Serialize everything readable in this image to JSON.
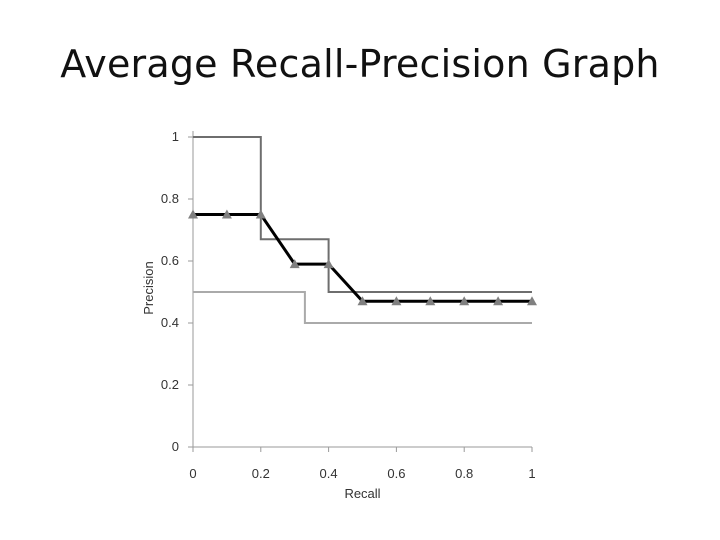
{
  "slide": {
    "title": "Average Recall-Precision Graph"
  },
  "chart_data": {
    "type": "line",
    "title": "",
    "xlabel": "Recall",
    "ylabel": "Precision",
    "xlim": [
      0,
      1
    ],
    "ylim": [
      0,
      1
    ],
    "xticks": [
      0,
      0.2,
      0.4,
      0.6,
      0.8,
      1
    ],
    "xtick_labels": [
      "0",
      "0.2",
      "0.4",
      "0.6",
      "0.8",
      "1"
    ],
    "yticks": [
      0,
      0.2,
      0.4,
      0.6,
      0.8,
      1
    ],
    "ytick_labels": [
      "0",
      "0.2",
      "0.4",
      "0.6",
      "0.8",
      "1"
    ],
    "grid": false,
    "legend": "none",
    "series": [
      {
        "style": "step-dark-gray",
        "color": "#6e6e6e",
        "x": [
          0,
          0.2,
          0.2,
          0.4,
          0.4,
          1
        ],
        "y": [
          1,
          1,
          0.67,
          0.67,
          0.5,
          0.5
        ]
      },
      {
        "style": "step-light-gray",
        "color": "#aaaaaa",
        "x": [
          0,
          0.33,
          0.33,
          1
        ],
        "y": [
          0.5,
          0.5,
          0.4,
          0.4
        ]
      },
      {
        "style": "bold-black-triangles",
        "color": "#000000",
        "marker_color": "#808080",
        "x": [
          0,
          0.1,
          0.2,
          0.3,
          0.4,
          0.5,
          0.6,
          0.7,
          0.8,
          0.9,
          1
        ],
        "y": [
          0.75,
          0.75,
          0.75,
          0.59,
          0.59,
          0.47,
          0.47,
          0.47,
          0.47,
          0.47,
          0.47
        ]
      }
    ]
  }
}
